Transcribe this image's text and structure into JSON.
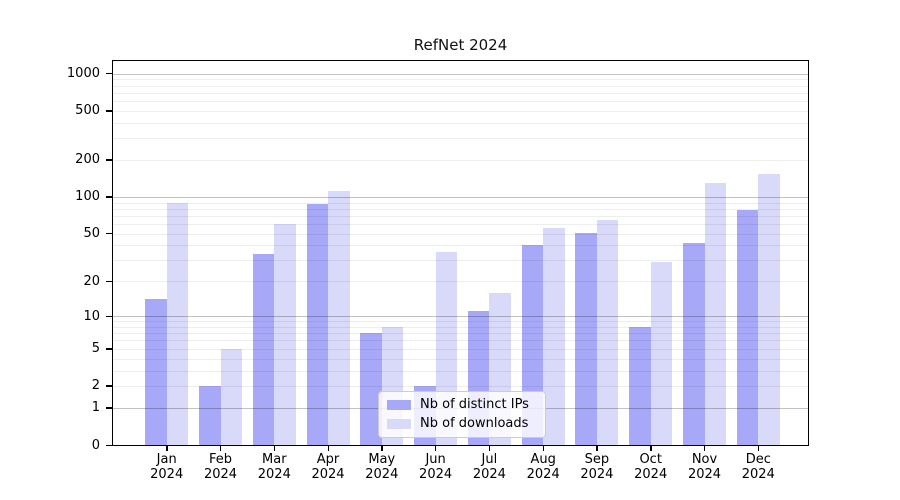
{
  "chart_data": {
    "type": "bar",
    "title": "RefNet 2024",
    "categories": [
      "Jan 2024",
      "Feb 2024",
      "Mar 2024",
      "Apr 2024",
      "May 2024",
      "Jun 2024",
      "Jul 2024",
      "Aug 2024",
      "Sep 2024",
      "Oct 2024",
      "Nov 2024",
      "Dec 2024"
    ],
    "series": [
      {
        "name": "Nb of distinct IPs",
        "color": "#a8a8f8",
        "values": [
          14,
          2,
          34,
          88,
          7,
          2,
          11,
          40,
          51,
          8,
          42,
          78
        ]
      },
      {
        "name": "Nb of downloads",
        "color": "#d9d9f9",
        "values": [
          90,
          5,
          60,
          112,
          8,
          35,
          16,
          56,
          65,
          29,
          130,
          155
        ]
      }
    ],
    "xlabel": "",
    "ylabel": "",
    "yscale": "log1p",
    "yticks": [
      0,
      1,
      2,
      5,
      10,
      20,
      50,
      100,
      200,
      500,
      1000
    ],
    "major_grid_values": [
      1,
      10,
      100,
      1000
    ],
    "ylim": [
      0,
      1260
    ],
    "grid": "horizontal, major and minor, drawn over bars",
    "legend_position": "lower center",
    "background_color": "#ffffff",
    "spine_color": "#000000"
  }
}
